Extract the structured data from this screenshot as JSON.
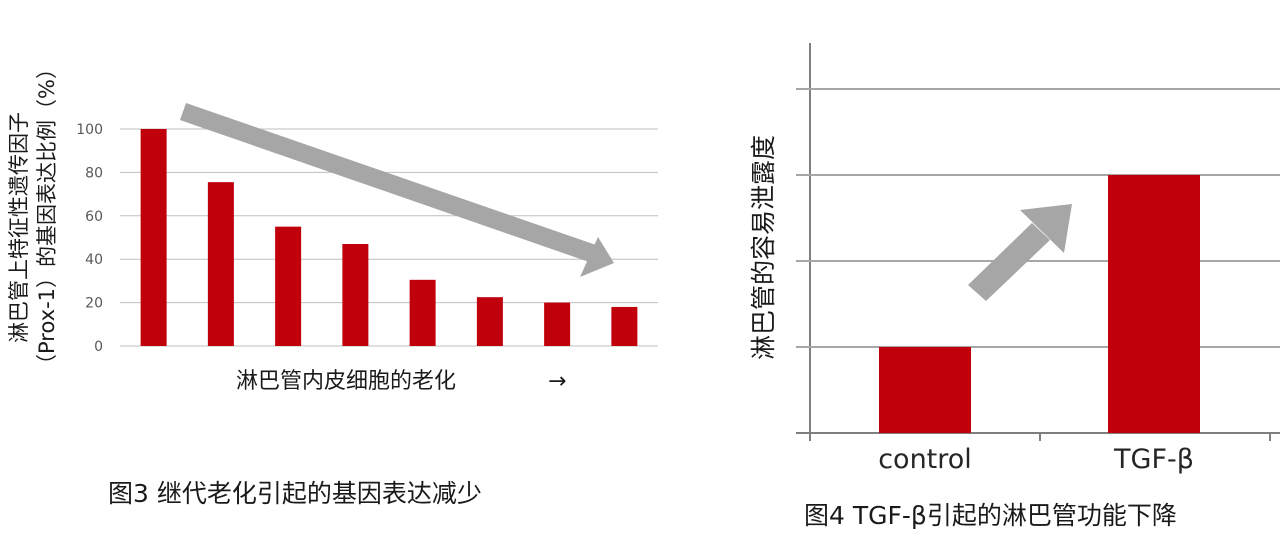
{
  "chart_data": [
    {
      "type": "bar",
      "title": "",
      "caption": "图3 继代老化引起的基因表达减少",
      "ylabel": "淋巴管上特征性遗传因子（Prox-1）的基因表达比例（%）",
      "ylabel_line1": "淋巴管上特征性遗传因子",
      "ylabel_line2": "（Prox-1）的基因表达比例（%）",
      "xlabel": "淋巴管内皮细胞的老化",
      "xlabel_arrow": "→",
      "ylim": [
        0,
        100
      ],
      "yticks": [
        0,
        20,
        40,
        60,
        80,
        100
      ],
      "grid": true,
      "values": [
        100,
        75.5,
        55,
        47,
        30.5,
        22.5,
        20,
        18
      ],
      "bar_color": "#c0000b",
      "annotation": "decreasing-trend-arrow",
      "annotation_color": "#a6a6a6"
    },
    {
      "type": "bar",
      "title": "",
      "caption": "图4 TGF-β引起的淋巴管功能下降",
      "ylabel": "淋巴管的容易泄露度",
      "categories": [
        "control",
        "TGF-β"
      ],
      "ylim": [
        0,
        5
      ],
      "grid": true,
      "tick_labels_shown": false,
      "values": [
        1,
        3
      ],
      "bar_color": "#c0000b",
      "annotation": "increasing-trend-arrow",
      "annotation_color": "#a6a6a6"
    }
  ]
}
